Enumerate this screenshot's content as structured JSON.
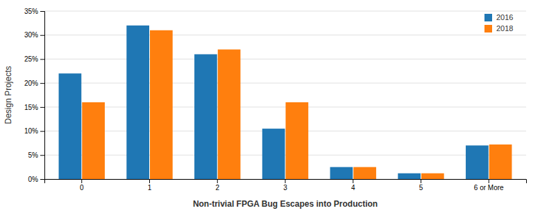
{
  "chart_data": {
    "type": "bar",
    "xlabel": "Non-trivial FPGA Bug Escapes into Production",
    "ylabel": "Design Projects",
    "categories": [
      "0",
      "1",
      "2",
      "3",
      "4",
      "5",
      "6 or More"
    ],
    "series": [
      {
        "name": "2016",
        "values": [
          22,
          32,
          26,
          10.5,
          2.5,
          1.2,
          7
        ]
      },
      {
        "name": "2018",
        "values": [
          16,
          31,
          27,
          16,
          2.5,
          1.2,
          7.2
        ]
      }
    ],
    "ylim": [
      0,
      35
    ],
    "yticks": [
      {
        "value": 0,
        "label": "0%"
      },
      {
        "value": 5,
        "label": "5%"
      },
      {
        "value": 10,
        "label": "10%"
      },
      {
        "value": 15,
        "label": "15%"
      },
      {
        "value": 20,
        "label": "20%"
      },
      {
        "value": 25,
        "label": "25%"
      },
      {
        "value": 30,
        "label": "30%"
      },
      {
        "value": 35,
        "label": "35%"
      }
    ],
    "grid": true,
    "legend": "upper right"
  }
}
